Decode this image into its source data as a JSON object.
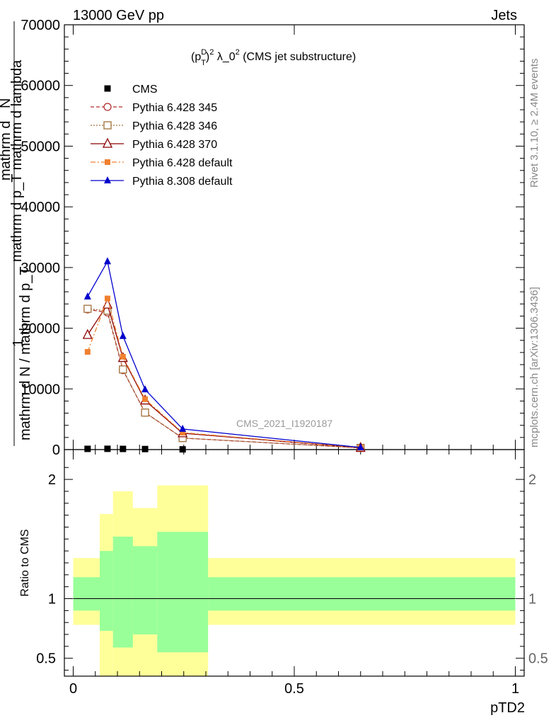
{
  "header": {
    "energy_label": "13000 GeV pp",
    "process_label": "Jets"
  },
  "side_labels": {
    "rivet": "Rivet 3.1.10, ≥ 2.4M events",
    "mcplots": "mcplots.cern.ch [arXiv:1306.3436]"
  },
  "chart_data": [
    {
      "type": "line",
      "title_parts": {
        "base": "(p",
        "sup1": "D",
        "sub1": "T",
        "close": ")",
        "sup2": "2",
        "mid": " λ_0",
        "sup3": "2",
        "tail": " (CMS jet substructure)"
      },
      "ylabel": {
        "numer1": "mathrm d",
        "numer2": "N",
        "numer3": "mathrm d p_T mathrm d lambda",
        "one": "1",
        "denom": "mathrm d N / mathrm d p_T"
      },
      "watermark": "CMS_2021_I1920187",
      "xlim": [
        -0.02,
        1.02
      ],
      "ylim": [
        0,
        70000
      ],
      "y_ticks": [
        0,
        10000,
        20000,
        30000,
        40000,
        50000,
        60000,
        70000
      ],
      "y_tick_labels": [
        "0",
        "10000",
        "20000",
        "30000",
        "40000",
        "50000",
        "60000",
        "70000"
      ],
      "legend_position": "top-left",
      "series": [
        {
          "name": "CMS",
          "color": "#000000",
          "marker": "square-filled",
          "line": "none",
          "x": [
            0.0325,
            0.0775,
            0.1125,
            0.1625,
            0.2475
          ],
          "y": [
            120,
            130,
            110,
            90,
            40
          ]
        },
        {
          "name": "Pythia 6.428 345",
          "color": "#b22c2c",
          "marker": "circle-open",
          "line": "dashed",
          "x": [
            0.0325,
            0.0775,
            0.1125,
            0.1625,
            0.2475,
            0.65
          ],
          "y": [
            23100,
            22600,
            13100,
            6100,
            1900,
            280
          ]
        },
        {
          "name": "Pythia 6.428 346",
          "color": "#a0703a",
          "marker": "square-open",
          "line": "dotted",
          "x": [
            0.0325,
            0.0775,
            0.1125,
            0.1625,
            0.2475,
            0.65
          ],
          "y": [
            23200,
            22900,
            13200,
            6100,
            1900,
            280
          ]
        },
        {
          "name": "Pythia 6.428 370",
          "color": "#8b0000",
          "marker": "triangle-open",
          "line": "solid",
          "x": [
            0.0325,
            0.0775,
            0.1125,
            0.1625,
            0.2475,
            0.65
          ],
          "y": [
            18900,
            23900,
            15100,
            8100,
            2700,
            290
          ]
        },
        {
          "name": "Pythia 6.428 default",
          "color": "#f08030",
          "marker": "square-filled-small",
          "line": "dashdot",
          "x": [
            0.0325,
            0.0775,
            0.1125,
            0.1625,
            0.2475,
            0.65
          ],
          "y": [
            16100,
            24900,
            15300,
            8300,
            2800,
            300
          ]
        },
        {
          "name": "Pythia 8.308 default",
          "color": "#0000cc",
          "marker": "triangle-filled",
          "line": "solid",
          "x": [
            0.0325,
            0.0775,
            0.1125,
            0.1625,
            0.2475,
            0.65
          ],
          "y": [
            25200,
            31000,
            18700,
            9900,
            3400,
            350
          ]
        }
      ]
    },
    {
      "type": "area",
      "ylabel": "Ratio to CMS",
      "xlabel": "pTD2",
      "xlim": [
        -0.02,
        1.02
      ],
      "ylim": [
        0.35,
        2.25
      ],
      "y_ticks": [
        0.5,
        1,
        2
      ],
      "y_tick_labels": [
        "0.5",
        "1",
        "2"
      ],
      "x_ticks": [
        0,
        0.5,
        1
      ],
      "x_tick_labels": [
        "0",
        "0.5",
        "1"
      ],
      "reference_line": 1,
      "bands": [
        {
          "name": "yellow",
          "color": "#ffff99",
          "bins": [
            {
              "x0": 0.0,
              "x1": 0.06,
              "lo": 0.78,
              "hi": 1.34
            },
            {
              "x0": 0.06,
              "x1": 0.09,
              "lo": 0.35,
              "hi": 1.71
            },
            {
              "x0": 0.09,
              "x1": 0.135,
              "lo": 0.35,
              "hi": 1.9
            },
            {
              "x0": 0.135,
              "x1": 0.19,
              "lo": 0.35,
              "hi": 1.76
            },
            {
              "x0": 0.19,
              "x1": 0.305,
              "lo": 0.35,
              "hi": 1.95
            },
            {
              "x0": 0.305,
              "x1": 1.0,
              "lo": 0.78,
              "hi": 1.34
            }
          ]
        },
        {
          "name": "green",
          "color": "#99ff99",
          "bins": [
            {
              "x0": 0.0,
              "x1": 0.06,
              "lo": 0.9,
              "hi": 1.18
            },
            {
              "x0": 0.06,
              "x1": 0.09,
              "lo": 0.73,
              "hi": 1.4
            },
            {
              "x0": 0.09,
              "x1": 0.135,
              "lo": 0.59,
              "hi": 1.52
            },
            {
              "x0": 0.135,
              "x1": 0.19,
              "lo": 0.7,
              "hi": 1.44
            },
            {
              "x0": 0.19,
              "x1": 0.305,
              "lo": 0.55,
              "hi": 1.56
            },
            {
              "x0": 0.305,
              "x1": 1.0,
              "lo": 0.9,
              "hi": 1.18
            }
          ]
        }
      ]
    }
  ]
}
